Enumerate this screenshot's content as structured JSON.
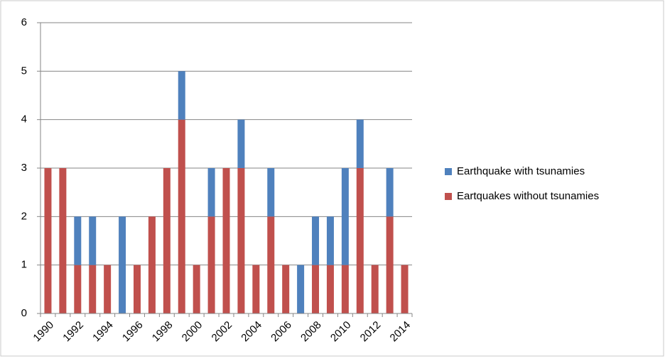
{
  "chart_data": {
    "type": "stacked_bar",
    "categories": [
      "1990",
      null,
      "1992",
      null,
      "1994",
      null,
      "1996",
      null,
      "1998",
      null,
      "2000",
      null,
      "2002",
      null,
      "2004",
      null,
      "2006",
      null,
      "2008",
      null,
      "2010",
      null,
      "2012",
      null,
      "2014"
    ],
    "series": [
      {
        "name": "Eartquakes without tsunamies",
        "color": "#c0504d",
        "values": [
          3,
          3,
          1,
          1,
          1,
          0,
          1,
          2,
          3,
          4,
          1,
          2,
          3,
          3,
          1,
          2,
          1,
          0,
          1,
          1,
          1,
          3,
          1,
          2,
          1
        ]
      },
      {
        "name": "Earthquake with tsunamies",
        "color": "#4f81bd",
        "values": [
          0,
          0,
          1,
          1,
          0,
          2,
          0,
          0,
          0,
          1,
          0,
          1,
          0,
          1,
          0,
          1,
          0,
          1,
          1,
          1,
          2,
          1,
          0,
          1,
          0
        ]
      }
    ],
    "ylim": [
      0,
      6
    ],
    "yticks": [
      0,
      1,
      2,
      3,
      4,
      5,
      6
    ],
    "grid": true,
    "legend": "right"
  }
}
